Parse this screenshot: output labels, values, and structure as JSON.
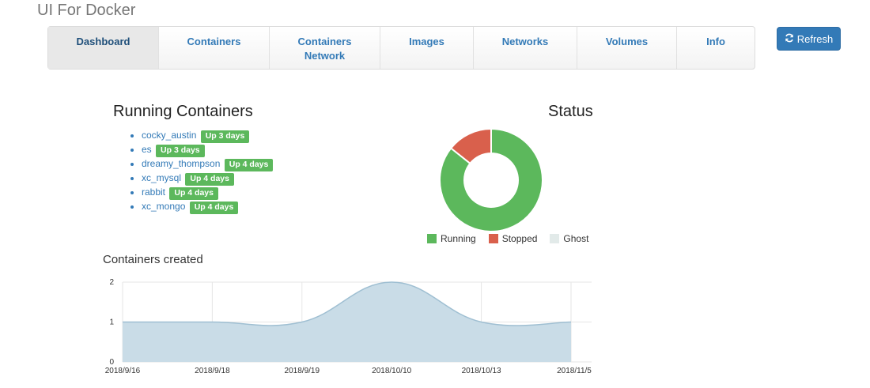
{
  "app_title": "UI For Docker",
  "nav": {
    "items": [
      {
        "label": "Dashboard",
        "active": true
      },
      {
        "label": "Containers"
      },
      {
        "label": "Containers Network"
      },
      {
        "label": "Images"
      },
      {
        "label": "Networks"
      },
      {
        "label": "Volumes"
      },
      {
        "label": "Info"
      }
    ],
    "refresh_label": "Refresh",
    "refresh_icon": "refresh-icon"
  },
  "running_containers": {
    "title": "Running Containers",
    "items": [
      {
        "name": "cocky_austin",
        "uptime": "Up 3 days"
      },
      {
        "name": "es",
        "uptime": "Up 3 days"
      },
      {
        "name": "dreamy_thompson",
        "uptime": "Up 4 days"
      },
      {
        "name": "xc_mysql",
        "uptime": "Up 4 days"
      },
      {
        "name": "rabbit",
        "uptime": "Up 4 days"
      },
      {
        "name": "xc_mongo",
        "uptime": "Up 4 days"
      }
    ]
  },
  "status": {
    "title": "Status",
    "colors": {
      "running": "#5cb85c",
      "stopped": "#d9604c",
      "ghost": "#e2eae9"
    }
  },
  "containers_created": {
    "title": "Containers created"
  },
  "chart_data": [
    {
      "type": "pie",
      "title": "Status",
      "categories": [
        "Running",
        "Stopped",
        "Ghost"
      ],
      "values": [
        6,
        1,
        0
      ],
      "colors": [
        "#5cb85c",
        "#d9604c",
        "#e2eae9"
      ],
      "legend": "bottom"
    },
    {
      "type": "area",
      "title": "Containers created",
      "categories": [
        "2018/9/16",
        "2018/9/18",
        "2018/9/19",
        "2018/10/10",
        "2018/10/13",
        "2018/11/5"
      ],
      "values": [
        1,
        1,
        1,
        2,
        1,
        1
      ],
      "ylim": [
        0,
        2
      ],
      "yticks": [
        0,
        1,
        2
      ],
      "grid": true,
      "fill_color": "#c9dce7",
      "line_color": "#9fbfd2"
    }
  ]
}
